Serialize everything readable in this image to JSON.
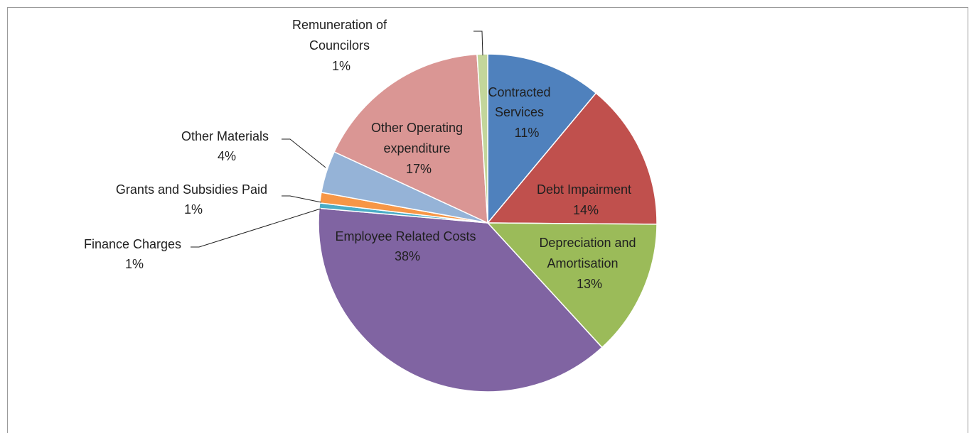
{
  "chart_data": {
    "type": "pie",
    "title": "",
    "start_angle_deg": 0,
    "direction": "clockwise",
    "legend": "none",
    "slices": [
      {
        "label": "Contracted Services",
        "value": 11,
        "pct_label": "11%",
        "color": "#4f81bd"
      },
      {
        "label": "Debt Impairment",
        "value": 14,
        "pct_label": "14%",
        "color": "#c0504d"
      },
      {
        "label": "Depreciation and Amortisation",
        "value": 13,
        "pct_label": "13%",
        "color": "#9bbb59"
      },
      {
        "label": "Employee Related Costs",
        "value": 38,
        "pct_label": "38%",
        "color": "#8064a2"
      },
      {
        "label": "Finance Charges",
        "value": 0.5,
        "pct_label": "1%",
        "color": "#4bacc6"
      },
      {
        "label": "Grants and Subsidies Paid",
        "value": 1,
        "pct_label": "1%",
        "color": "#f79646"
      },
      {
        "label": "Other Materials",
        "value": 4,
        "pct_label": "4%",
        "color": "#95b3d7"
      },
      {
        "label": "Other Operating expenditure",
        "value": 17,
        "pct_label": "17%",
        "color": "#da9694"
      },
      {
        "label": "Remuneration of Councilors",
        "value": 1,
        "pct_label": "1%",
        "color": "#c3d69b"
      }
    ]
  },
  "labels": {
    "contracted": {
      "line1": "Contracted",
      "line2": "Services",
      "pct": "11%"
    },
    "debt": {
      "line1": "Debt Impairment",
      "pct": "14%"
    },
    "depreciation": {
      "line1": "Depreciation and",
      "line2": "Amortisation",
      "pct": "13%"
    },
    "employee": {
      "line1": "Employee Related Costs",
      "pct": "38%"
    },
    "other_operating": {
      "line1": "Other Operating",
      "line2": "expenditure",
      "pct": "17%"
    },
    "other_materials": {
      "line1": "Other Materials",
      "pct": "4%"
    },
    "grants": {
      "line1": "Grants and Subsidies Paid",
      "pct": "1%"
    },
    "finance": {
      "line1": "Finance Charges",
      "pct": "1%"
    },
    "remuneration": {
      "line1": "Remuneration of",
      "line2": "Councilors",
      "pct": "1%"
    }
  }
}
